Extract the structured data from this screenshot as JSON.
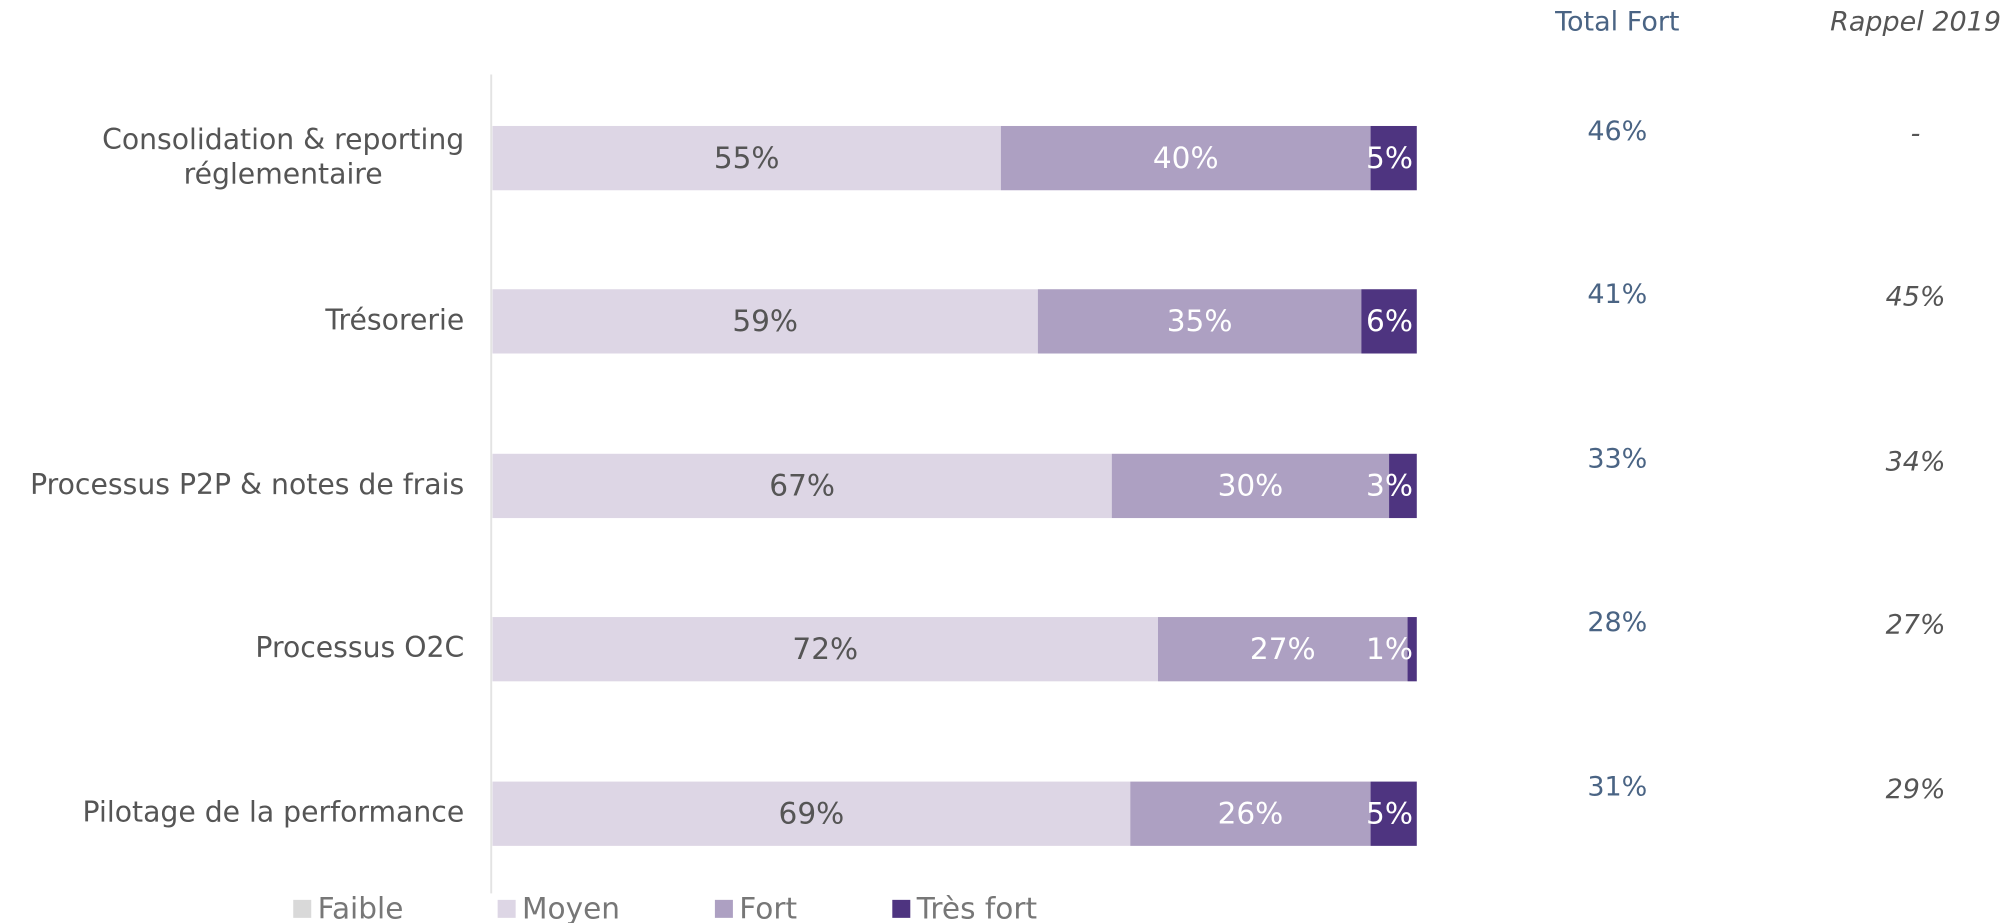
{
  "chart_data": {
    "type": "stacked-barh",
    "categories": [
      "Consolidation & reporting\nréglementaire",
      "Trésorerie",
      "Processus P2P & notes de frais",
      "Processus O2C",
      "Pilotage de la performance"
    ],
    "xlim": [
      0,
      100
    ],
    "series": [
      {
        "name": "Faible",
        "color": "#d9d9d9",
        "values": [
          0,
          0,
          0,
          0,
          0
        ]
      },
      {
        "name": "Moyen",
        "color": "#ddd6e5",
        "values": [
          55,
          59,
          67,
          72,
          69
        ],
        "value_labels": [
          "55%",
          "59%",
          "67%",
          "72%",
          "69%"
        ]
      },
      {
        "name": "Fort",
        "color": "#ada0c2",
        "values": [
          40,
          35,
          30,
          27,
          26
        ],
        "value_labels": [
          "40%",
          "35%",
          "30%",
          "27%",
          "26%"
        ]
      },
      {
        "name": "Très fort",
        "color": "#4e3480",
        "values": [
          5,
          6,
          3,
          1,
          5
        ],
        "value_labels": [
          "5%",
          "6%",
          "3%",
          "1%",
          "5%"
        ]
      }
    ],
    "columns": [
      {
        "header": "Total Fort",
        "values": [
          46,
          41,
          33,
          28,
          31
        ],
        "value_labels": [
          "46%",
          "41%",
          "33%",
          "28%",
          "31%"
        ]
      },
      {
        "header": "Rappel 2019",
        "values": [
          null,
          45,
          34,
          27,
          29
        ],
        "value_labels": [
          "-",
          "45%",
          "34%",
          "27%",
          "29%"
        ]
      }
    ],
    "legend": "bottom"
  }
}
